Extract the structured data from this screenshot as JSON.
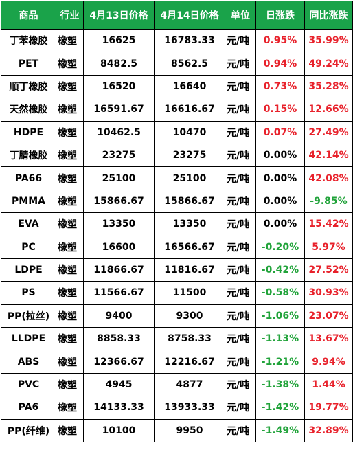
{
  "headers": [
    "商品",
    "行业",
    "4月13日价格",
    "4月14日价格",
    "单位",
    "日涨跌",
    "同比涨跌"
  ],
  "rows": [
    {
      "name": "丁苯橡胶",
      "industry": "橡塑",
      "p13": "16625",
      "p14": "16783.33",
      "unit": "元/吨",
      "day": "0.95%",
      "day_dir": "up",
      "yoy": "35.99%",
      "yoy_dir": "up"
    },
    {
      "name": "PET",
      "industry": "橡塑",
      "p13": "8482.5",
      "p14": "8562.5",
      "unit": "元/吨",
      "day": "0.94%",
      "day_dir": "up",
      "yoy": "49.24%",
      "yoy_dir": "up"
    },
    {
      "name": "顺丁橡胶",
      "industry": "橡塑",
      "p13": "16520",
      "p14": "16640",
      "unit": "元/吨",
      "day": "0.73%",
      "day_dir": "up",
      "yoy": "35.28%",
      "yoy_dir": "up"
    },
    {
      "name": "天然橡胶",
      "industry": "橡塑",
      "p13": "16591.67",
      "p14": "16616.67",
      "unit": "元/吨",
      "day": "0.15%",
      "day_dir": "up",
      "yoy": "12.66%",
      "yoy_dir": "up"
    },
    {
      "name": "HDPE",
      "industry": "橡塑",
      "p13": "10462.5",
      "p14": "10470",
      "unit": "元/吨",
      "day": "0.07%",
      "day_dir": "up",
      "yoy": "27.49%",
      "yoy_dir": "up"
    },
    {
      "name": "丁腈橡胶",
      "industry": "橡塑",
      "p13": "23275",
      "p14": "23275",
      "unit": "元/吨",
      "day": "0.00%",
      "day_dir": "zero",
      "yoy": "42.14%",
      "yoy_dir": "up"
    },
    {
      "name": "PA66",
      "industry": "橡塑",
      "p13": "25100",
      "p14": "25100",
      "unit": "元/吨",
      "day": "0.00%",
      "day_dir": "zero",
      "yoy": "42.08%",
      "yoy_dir": "up"
    },
    {
      "name": "PMMA",
      "industry": "橡塑",
      "p13": "15866.67",
      "p14": "15866.67",
      "unit": "元/吨",
      "day": "0.00%",
      "day_dir": "zero",
      "yoy": "-9.85%",
      "yoy_dir": "down"
    },
    {
      "name": "EVA",
      "industry": "橡塑",
      "p13": "13350",
      "p14": "13350",
      "unit": "元/吨",
      "day": "0.00%",
      "day_dir": "zero",
      "yoy": "15.42%",
      "yoy_dir": "up"
    },
    {
      "name": "PC",
      "industry": "橡塑",
      "p13": "16600",
      "p14": "16566.67",
      "unit": "元/吨",
      "day": "-0.20%",
      "day_dir": "down",
      "yoy": "5.97%",
      "yoy_dir": "up"
    },
    {
      "name": "LDPE",
      "industry": "橡塑",
      "p13": "11866.67",
      "p14": "11816.67",
      "unit": "元/吨",
      "day": "-0.42%",
      "day_dir": "down",
      "yoy": "27.52%",
      "yoy_dir": "up"
    },
    {
      "name": "PS",
      "industry": "橡塑",
      "p13": "11566.67",
      "p14": "11500",
      "unit": "元/吨",
      "day": "-0.58%",
      "day_dir": "down",
      "yoy": "30.93%",
      "yoy_dir": "up"
    },
    {
      "name": "PP(拉丝)",
      "industry": "橡塑",
      "p13": "9400",
      "p14": "9300",
      "unit": "元/吨",
      "day": "-1.06%",
      "day_dir": "down",
      "yoy": "23.07%",
      "yoy_dir": "up"
    },
    {
      "name": "LLDPE",
      "industry": "橡塑",
      "p13": "8858.33",
      "p14": "8758.33",
      "unit": "元/吨",
      "day": "-1.13%",
      "day_dir": "down",
      "yoy": "13.67%",
      "yoy_dir": "up"
    },
    {
      "name": "ABS",
      "industry": "橡塑",
      "p13": "12366.67",
      "p14": "12216.67",
      "unit": "元/吨",
      "day": "-1.21%",
      "day_dir": "down",
      "yoy": "9.94%",
      "yoy_dir": "up"
    },
    {
      "name": "PVC",
      "industry": "橡塑",
      "p13": "4945",
      "p14": "4877",
      "unit": "元/吨",
      "day": "-1.38%",
      "day_dir": "down",
      "yoy": "1.44%",
      "yoy_dir": "up"
    },
    {
      "name": "PA6",
      "industry": "橡塑",
      "p13": "14133.33",
      "p14": "13933.33",
      "unit": "元/吨",
      "day": "-1.42%",
      "day_dir": "down",
      "yoy": "19.77%",
      "yoy_dir": "up"
    },
    {
      "name": "PP(纤维)",
      "industry": "橡塑",
      "p13": "10100",
      "p14": "9950",
      "unit": "元/吨",
      "day": "-1.49%",
      "day_dir": "down",
      "yoy": "32.89%",
      "yoy_dir": "up"
    }
  ],
  "colors": {
    "header_bg": "#1aa34a",
    "header_text": "#ffffff",
    "up": "#e8212b",
    "down": "#21a33a",
    "zero": "#000000"
  }
}
